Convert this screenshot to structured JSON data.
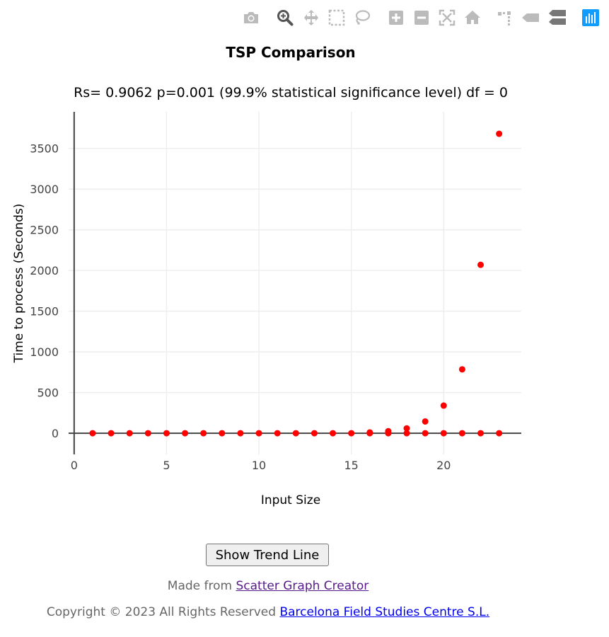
{
  "modebar": {
    "buttons": [
      {
        "name": "camera-icon",
        "label": "Download plot as a png"
      },
      {
        "name": "zoom-icon",
        "label": "Zoom"
      },
      {
        "name": "pan-icon",
        "label": "Pan"
      },
      {
        "name": "box-select-icon",
        "label": "Box Select"
      },
      {
        "name": "lasso-select-icon",
        "label": "Lasso Select"
      },
      {
        "name": "zoom-in-icon",
        "label": "Zoom in"
      },
      {
        "name": "zoom-out-icon",
        "label": "Zoom out"
      },
      {
        "name": "autoscale-icon",
        "label": "Autoscale"
      },
      {
        "name": "home-icon",
        "label": "Reset axes"
      },
      {
        "name": "spike-lines-icon",
        "label": "Toggle Spike Lines"
      },
      {
        "name": "hover-closest-icon",
        "label": "Show closest data on hover"
      },
      {
        "name": "hover-compare-icon",
        "label": "Compare data on hover"
      },
      {
        "name": "plotly-logo-icon",
        "label": "Produced with Plotly"
      }
    ],
    "active": "zoom-icon"
  },
  "chart_data": {
    "type": "scatter",
    "title": "TSP Comparison",
    "subtitle": "Rs= 0.9062  p=0.001 (99.9% statistical significance level)  df = 0",
    "xlabel": "Input Size",
    "ylabel": "Time to process (Seconds)",
    "xlim": [
      -0.3,
      24.2
    ],
    "ylim": [
      -260,
      3950
    ],
    "xticks": [
      0,
      5,
      10,
      15,
      20
    ],
    "yticks": [
      0,
      500,
      1000,
      1500,
      2000,
      2500,
      3000,
      3500
    ],
    "grid": true,
    "marker_color": "#ff0000",
    "series": [
      {
        "x": [
          1,
          2,
          3,
          4,
          5,
          6,
          7,
          8,
          9,
          10,
          11,
          12,
          13,
          14,
          15,
          16,
          17,
          18,
          19,
          20,
          21,
          22,
          23
        ],
        "y": [
          0,
          0,
          0,
          0,
          0,
          0,
          0,
          0,
          0,
          0,
          0,
          0,
          0,
          0,
          0,
          0,
          0,
          0,
          0,
          0,
          0,
          0,
          0
        ]
      },
      {
        "x": [
          16,
          17,
          18,
          19,
          20,
          21,
          22,
          23
        ],
        "y": [
          10,
          25,
          60,
          145,
          340,
          785,
          2070,
          3680
        ]
      }
    ]
  },
  "trend_button": {
    "label": "Show Trend Line"
  },
  "footer": {
    "made_from_prefix": "Made from ",
    "made_from_link": "Scatter Graph Creator",
    "copyright_prefix": "Copyright © 2023 All Rights Reserved ",
    "copyright_link": "Barcelona Field Studies Centre S.L."
  }
}
